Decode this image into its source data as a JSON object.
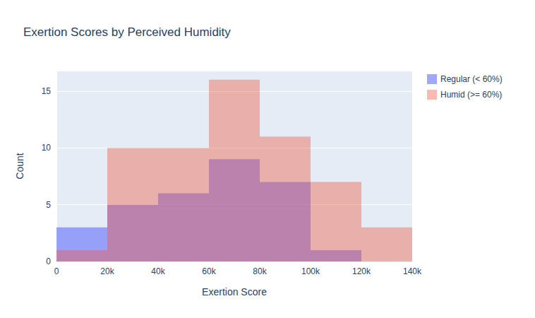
{
  "chart_data": {
    "type": "histogram",
    "title": "Exertion Scores by Perceived Humidity",
    "x_label": "Exertion Score",
    "y_label": "Count",
    "bins": [
      0,
      20000,
      40000,
      60000,
      80000,
      100000,
      120000,
      140000
    ],
    "series": [
      {
        "name": "Regular (< 60%)",
        "color": "#636efa",
        "values": [
          3,
          5,
          6,
          9,
          7,
          1,
          0
        ]
      },
      {
        "name": "Humid (>= 60%)",
        "color": "#EF553B",
        "values": [
          1,
          10,
          10,
          16,
          11,
          7,
          3
        ]
      }
    ],
    "xlim": [
      0,
      140000
    ],
    "xticks": [
      0,
      {
        "value": 20000,
        "label": "20k"
      },
      {
        "value": 40000,
        "label": "40k"
      },
      {
        "value": 60000,
        "label": "60k"
      },
      {
        "value": 80000,
        "label": "80k"
      },
      {
        "value": 100000,
        "label": "100k"
      },
      {
        "value": 120000,
        "label": "120k"
      },
      {
        "value": 140000,
        "label": "140k"
      }
    ],
    "ylim": [
      0,
      16.8
    ],
    "yticks": [
      0,
      5,
      10,
      15
    ],
    "grid": true,
    "legend": "right"
  }
}
